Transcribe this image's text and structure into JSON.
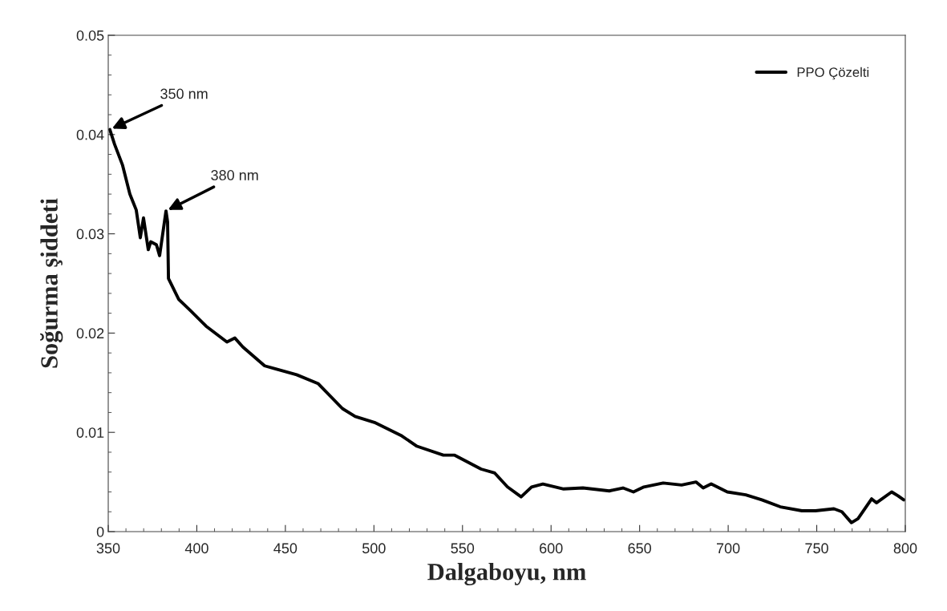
{
  "chart_data": {
    "type": "line",
    "xlabel": "Dalgaboyu, nm",
    "ylabel": "Soğurma şiddeti",
    "xlim": [
      350,
      800
    ],
    "xticks": [
      350,
      400,
      450,
      500,
      550,
      600,
      650,
      700,
      750,
      800
    ],
    "ylim": [
      0,
      0.05
    ],
    "yticks": [
      {
        "value": 0,
        "label": "0"
      },
      0.01,
      0.02,
      0.03,
      0.04,
      0.05
    ],
    "grid": false,
    "legend": "top right",
    "marker": "none",
    "line_style": "solid",
    "annotations": [
      {
        "text": "350 nm",
        "x": 350.9,
        "y": 0.0405
      },
      {
        "text": "380 nm",
        "x": 382.6,
        "y": 0.0323
      }
    ],
    "series": [
      {
        "name": "PPO Çözelti",
        "color": "#000000",
        "x": [
          350.9,
          353.6,
          358.1,
          362.2,
          365.8,
          368.1,
          369.9,
          372.6,
          374.0,
          377.2,
          379.0,
          382.6,
          383.5,
          384.0,
          389.8,
          396.2,
          405.2,
          417.0,
          421.5,
          426.0,
          438.3,
          444.2,
          456.4,
          468.6,
          482.2,
          489.4,
          500.3,
          515.2,
          524.3,
          539.2,
          545.6,
          560.5,
          568.2,
          575.4,
          583.1,
          589.0,
          595.4,
          607.1,
          618.0,
          632.9,
          640.6,
          646.5,
          652.4,
          663.3,
          673.7,
          681.8,
          685.9,
          690.4,
          699.5,
          709.9,
          719.0,
          729.4,
          741.6,
          749.3,
          759.7,
          764.2,
          769.6,
          773.3,
          781.0,
          783.7,
          792.3,
          795.9,
          799.1
        ],
        "values": [
          0.0405,
          0.039,
          0.0369,
          0.034,
          0.0324,
          0.0296,
          0.0316,
          0.0284,
          0.0292,
          0.0289,
          0.0278,
          0.0323,
          0.0312,
          0.0255,
          0.0234,
          0.0223,
          0.0207,
          0.0191,
          0.0195,
          0.0186,
          0.0167,
          0.0164,
          0.0158,
          0.0149,
          0.0124,
          0.0116,
          0.011,
          0.0097,
          0.0086,
          0.0077,
          0.0077,
          0.0063,
          0.0059,
          0.0045,
          0.0035,
          0.0045,
          0.0048,
          0.0043,
          0.0044,
          0.0041,
          0.0044,
          0.004,
          0.0045,
          0.0049,
          0.0047,
          0.005,
          0.0044,
          0.0048,
          0.004,
          0.0037,
          0.0032,
          0.0025,
          0.0021,
          0.0021,
          0.0023,
          0.002,
          0.0009,
          0.0013,
          0.0033,
          0.0029,
          0.004,
          0.0036,
          0.0032
        ]
      }
    ]
  }
}
